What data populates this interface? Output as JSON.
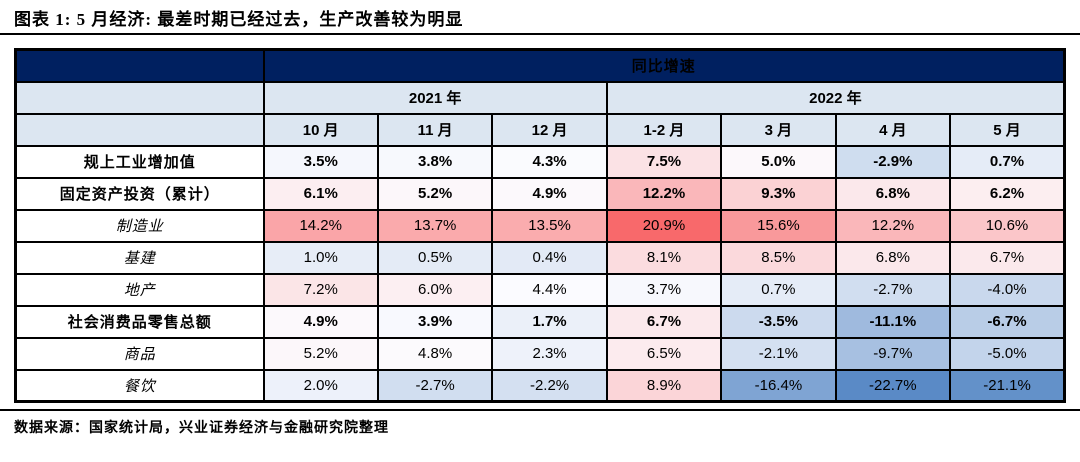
{
  "title": "图表 1: 5 月经济: 最差时期已经过去，生产改善较为明显",
  "source_note": "数据来源：国家统计局，兴业证券经济与金融研究院整理",
  "colors": {
    "header_bg": "#002060",
    "header_text": "#FFFFFF",
    "subheader_bg": "#DCE6F1",
    "border": "#000000",
    "scale_min_color": "#5A8AC6",
    "scale_mid_color": "#FCFCFF",
    "scale_max_color": "#F8696B"
  },
  "chart_data": {
    "type": "table",
    "title": "同比增速",
    "unit": "%",
    "column_groups": [
      {
        "label": "2021 年",
        "span": 3
      },
      {
        "label": "2022 年",
        "span": 4
      }
    ],
    "columns": [
      "10 月",
      "11 月",
      "12 月",
      "1-2 月",
      "3 月",
      "4 月",
      "5 月"
    ],
    "rows": [
      {
        "label": "规上工业增加值",
        "level": "main",
        "values": [
          3.5,
          3.8,
          4.3,
          7.5,
          5.0,
          -2.9,
          0.7
        ]
      },
      {
        "label": "固定资产投资（累计）",
        "level": "main",
        "values": [
          6.1,
          5.2,
          4.9,
          12.2,
          9.3,
          6.8,
          6.2
        ]
      },
      {
        "label": "制造业",
        "level": "sub",
        "values": [
          14.2,
          13.7,
          13.5,
          20.9,
          15.6,
          12.2,
          10.6
        ]
      },
      {
        "label": "基建",
        "level": "sub",
        "values": [
          1.0,
          0.5,
          0.4,
          8.1,
          8.5,
          6.8,
          6.7
        ]
      },
      {
        "label": "地产",
        "level": "sub",
        "values": [
          7.2,
          6.0,
          4.4,
          3.7,
          0.7,
          -2.7,
          -4.0
        ]
      },
      {
        "label": "社会消费品零售总额",
        "level": "main",
        "values": [
          4.9,
          3.9,
          1.7,
          6.7,
          -3.5,
          -11.1,
          -6.7
        ]
      },
      {
        "label": "商品",
        "level": "sub",
        "values": [
          5.2,
          4.8,
          2.3,
          6.5,
          -2.1,
          -9.7,
          -5.0
        ]
      },
      {
        "label": "餐饮",
        "level": "sub",
        "values": [
          2.0,
          -2.7,
          -2.2,
          8.9,
          -16.4,
          -22.7,
          -21.1
        ]
      }
    ],
    "color_scale": {
      "min": -22.7,
      "mid": 4.6,
      "max": 20.9
    },
    "legend_position": "none",
    "grid": true
  }
}
